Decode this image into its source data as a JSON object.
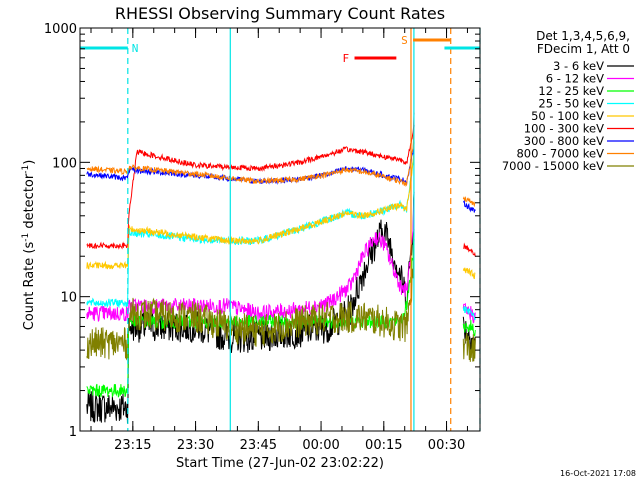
{
  "chart_data": {
    "type": "line",
    "title": "RHESSI Observing Summary Count Rates",
    "xlabel": "Start Time (27-Jun-02 23:02:22)",
    "ylabel_main": "Count Rate (s",
    "ylabel_sup1": "-1",
    "ylabel_mid": " detector",
    "ylabel_sup2": "-1",
    "ylabel_end": ")",
    "x_unit": "minutes since 23:00",
    "x_range": [
      2.37,
      98
    ],
    "y_scale": "log",
    "y_range": [
      1,
      1000
    ],
    "x_ticks": [
      {
        "value": 15,
        "label": "23:15"
      },
      {
        "value": 30,
        "label": "23:30"
      },
      {
        "value": 45,
        "label": "23:45"
      },
      {
        "value": 60,
        "label": "00:00"
      },
      {
        "value": 75,
        "label": "00:15"
      },
      {
        "value": 90,
        "label": "00:30"
      }
    ],
    "y_ticks": [
      {
        "value": 1,
        "label": "1"
      },
      {
        "value": 10,
        "label": "10"
      },
      {
        "value": 100,
        "label": "100"
      },
      {
        "value": 1000,
        "label": "1000"
      }
    ],
    "legend": {
      "placement": "top-right",
      "header_line1": "Det 1,3,4,5,6,9,",
      "header_line2": "FDecim 1, Att 0"
    },
    "flags": [
      {
        "label": "N",
        "color": "#00e5e5",
        "segments": [
          [
            2.37,
            13.8
          ],
          [
            89.5,
            98
          ]
        ]
      },
      {
        "label": "S",
        "color": "#ff8000",
        "segments": [
          [
            82,
            91
          ]
        ]
      },
      {
        "label": "F",
        "color": "#ff0000",
        "segments": [
          [
            68,
            78
          ]
        ]
      }
    ],
    "vlines": [
      {
        "x": 13.8,
        "color": "#00e5e5",
        "style": "dashed"
      },
      {
        "x": 38.3,
        "color": "#00e5e5",
        "style": "solid"
      },
      {
        "x": 81.5,
        "color": "#ff8000",
        "style": "solid"
      },
      {
        "x": 82.2,
        "color": "#00e5e5",
        "style": "solid"
      },
      {
        "x": 91.0,
        "color": "#ff8000",
        "style": "dashed"
      },
      {
        "x": 98.0,
        "color": "#00e5e5",
        "style": "dashed"
      }
    ],
    "series": [
      {
        "name": "3 - 6 keV",
        "color": "#000000",
        "points": [
          [
            4,
            1.5
          ],
          [
            13.8,
            1.5
          ],
          [
            14,
            6
          ],
          [
            30,
            6
          ],
          [
            38,
            5
          ],
          [
            45,
            5
          ],
          [
            55,
            5.5
          ],
          [
            62,
            6
          ],
          [
            67,
            8
          ],
          [
            70,
            15
          ],
          [
            73,
            25
          ],
          [
            75,
            32
          ],
          [
            77,
            22
          ],
          [
            79,
            14
          ],
          [
            80.5,
            10
          ],
          [
            82,
            35
          ],
          [
            82.3,
            70
          ],
          [
            93,
            null
          ],
          [
            94,
            6
          ],
          [
            96,
            5
          ],
          [
            97,
            4
          ]
        ]
      },
      {
        "name": "6 - 12 keV",
        "color": "#ff00ff",
        "points": [
          [
            4,
            7.5
          ],
          [
            13.8,
            7.5
          ],
          [
            14,
            8.5
          ],
          [
            38,
            8.5
          ],
          [
            45,
            7.5
          ],
          [
            55,
            8
          ],
          [
            62,
            9
          ],
          [
            67,
            12
          ],
          [
            70,
            20
          ],
          [
            73,
            28
          ],
          [
            75,
            25
          ],
          [
            77,
            17
          ],
          [
            79,
            12
          ],
          [
            80.5,
            11
          ],
          [
            82,
            30
          ],
          [
            82.3,
            60
          ],
          [
            93,
            null
          ],
          [
            94,
            8
          ],
          [
            96,
            7.5
          ],
          [
            97,
            7
          ]
        ]
      },
      {
        "name": "12 - 25 keV",
        "color": "#00ff00",
        "points": [
          [
            4,
            2
          ],
          [
            13.8,
            2
          ],
          [
            14,
            6.5
          ],
          [
            38,
            6.5
          ],
          [
            45,
            6.5
          ],
          [
            55,
            6.5
          ],
          [
            62,
            6.5
          ],
          [
            70,
            6.5
          ],
          [
            78,
            6.5
          ],
          [
            80,
            7
          ],
          [
            82,
            20
          ],
          [
            82.3,
            40
          ],
          [
            93,
            null
          ],
          [
            94,
            6
          ],
          [
            96,
            6
          ],
          [
            97,
            5.5
          ]
        ]
      },
      {
        "name": "25 - 50 keV",
        "color": "#00ffff",
        "points": [
          [
            4,
            9
          ],
          [
            13.8,
            9
          ],
          [
            14,
            30
          ],
          [
            30,
            27
          ],
          [
            38,
            26
          ],
          [
            45,
            26
          ],
          [
            55,
            32
          ],
          [
            62,
            38
          ],
          [
            66,
            42
          ],
          [
            70,
            40
          ],
          [
            75,
            44
          ],
          [
            79,
            48
          ],
          [
            80.5,
            45
          ],
          [
            82,
            100
          ],
          [
            82.3,
            150
          ],
          [
            93,
            null
          ],
          [
            94,
            8
          ],
          [
            96,
            7.5
          ],
          [
            97,
            7
          ]
        ]
      },
      {
        "name": "50 - 100 keV",
        "color": "#ffc800",
        "points": [
          [
            4,
            17
          ],
          [
            13.8,
            17
          ],
          [
            14,
            32
          ],
          [
            38,
            26
          ],
          [
            45,
            26
          ],
          [
            55,
            32
          ],
          [
            62,
            38
          ],
          [
            66,
            42
          ],
          [
            70,
            40
          ],
          [
            75,
            44
          ],
          [
            79,
            48
          ],
          [
            80.5,
            45
          ],
          [
            82,
            100
          ],
          [
            82.3,
            150
          ],
          [
            93,
            null
          ],
          [
            94,
            16
          ],
          [
            96,
            15
          ],
          [
            97,
            14
          ]
        ]
      },
      {
        "name": "100 - 300 keV",
        "color": "#ff0000",
        "points": [
          [
            4,
            24
          ],
          [
            13.8,
            24
          ],
          [
            14,
            40
          ],
          [
            16,
            120
          ],
          [
            30,
            95
          ],
          [
            45,
            90
          ],
          [
            55,
            100
          ],
          [
            62,
            115
          ],
          [
            66,
            125
          ],
          [
            70,
            120
          ],
          [
            75,
            110
          ],
          [
            79,
            105
          ],
          [
            80.5,
            100
          ],
          [
            82,
            160
          ],
          [
            82.3,
            250
          ],
          [
            93,
            null
          ],
          [
            94,
            24
          ],
          [
            96,
            22
          ],
          [
            97,
            20
          ]
        ]
      },
      {
        "name": "300 - 800 keV",
        "color": "#0000ff",
        "points": [
          [
            4,
            82
          ],
          [
            13.8,
            76
          ],
          [
            14,
            88
          ],
          [
            30,
            80
          ],
          [
            45,
            72
          ],
          [
            55,
            75
          ],
          [
            62,
            82
          ],
          [
            66,
            90
          ],
          [
            70,
            88
          ],
          [
            75,
            80
          ],
          [
            79,
            75
          ],
          [
            80.5,
            72
          ],
          [
            82,
            120
          ],
          [
            82.3,
            200
          ],
          [
            93,
            null
          ],
          [
            94,
            50
          ],
          [
            96,
            45
          ],
          [
            97,
            42
          ]
        ]
      },
      {
        "name": "800 - 7000 keV",
        "color": "#ff8000",
        "points": [
          [
            4,
            90
          ],
          [
            13.8,
            85
          ],
          [
            14,
            92
          ],
          [
            30,
            82
          ],
          [
            45,
            72
          ],
          [
            55,
            75
          ],
          [
            62,
            82
          ],
          [
            66,
            88
          ],
          [
            70,
            85
          ],
          [
            75,
            78
          ],
          [
            79,
            72
          ],
          [
            80.5,
            70
          ],
          [
            82,
            130
          ],
          [
            82.3,
            220
          ],
          [
            93,
            null
          ],
          [
            94,
            55
          ],
          [
            96,
            50
          ],
          [
            97,
            48
          ]
        ]
      },
      {
        "name": "7000 - 15000 keV",
        "color": "#808000",
        "points": [
          [
            4,
            4.5
          ],
          [
            13.8,
            4.5
          ],
          [
            14,
            7.5
          ],
          [
            30,
            7
          ],
          [
            38,
            6
          ],
          [
            45,
            5.5
          ],
          [
            55,
            6.5
          ],
          [
            62,
            7
          ],
          [
            70,
            7
          ],
          [
            75,
            6.5
          ],
          [
            79,
            6
          ],
          [
            80.5,
            6
          ],
          [
            82,
            15
          ],
          [
            82.3,
            25
          ],
          [
            93,
            null
          ],
          [
            94,
            4.5
          ],
          [
            96,
            4
          ],
          [
            97,
            4
          ]
        ]
      }
    ]
  },
  "footer_timestamp": "16-Oct-2021 17:08"
}
